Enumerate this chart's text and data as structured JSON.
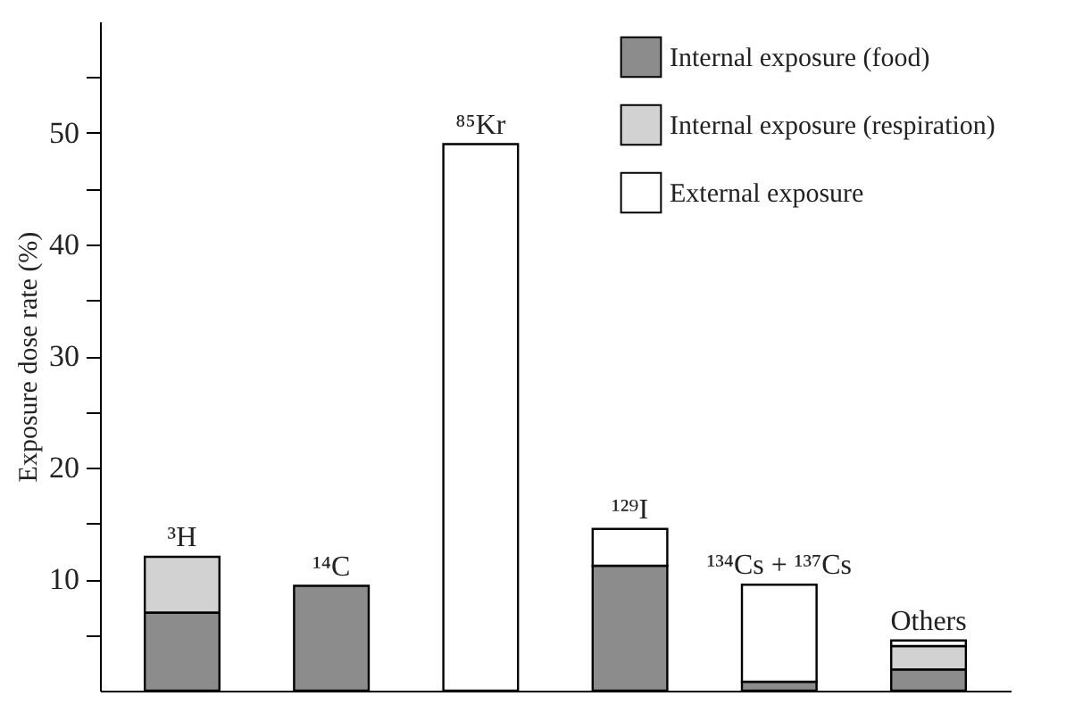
{
  "chart_data": {
    "type": "bar",
    "ylabel": "Exposure dose rate (%)",
    "categories": [
      "³H",
      "¹⁴C",
      "⁸⁵Kr",
      "¹²⁹I",
      "¹³⁴Cs + ¹³⁷Cs",
      "Others"
    ],
    "stacked": true,
    "series": [
      {
        "name": "Internal exposure (food)",
        "color": "#8c8c8c",
        "values": [
          7,
          9.4,
          null,
          11.2,
          0.8,
          1.9
        ]
      },
      {
        "name": "Internal exposure (respiration)",
        "color": "#d2d2d2",
        "values": [
          5,
          null,
          null,
          null,
          null,
          2.1
        ]
      },
      {
        "name": "External exposure",
        "color": "#ffffff",
        "values": [
          null,
          null,
          49,
          3.3,
          8.7,
          0.5
        ]
      }
    ],
    "ylim": [
      0,
      60
    ],
    "yticks": [
      {
        "value": 5,
        "label": null
      },
      10,
      {
        "value": 15,
        "label": null
      },
      20,
      {
        "value": 25,
        "label": null
      },
      30,
      {
        "value": 35,
        "label": null
      },
      40,
      {
        "value": 45,
        "label": null
      },
      50,
      {
        "value": 55,
        "label": null
      }
    ],
    "legend": "top right",
    "grid": false,
    "tick_labels": "y"
  }
}
